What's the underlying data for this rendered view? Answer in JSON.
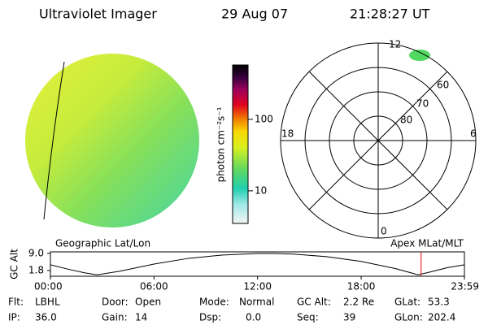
{
  "header": {
    "title": "Ultraviolet Imager",
    "date": "29 Aug 07",
    "time": "21:28:27 UT"
  },
  "colorbar": {
    "label": "photon cm⁻²s⁻¹",
    "log_scale": true,
    "clim": [
      3.5,
      575
    ],
    "ticks": [
      10,
      100
    ]
  },
  "polar": {
    "mlt_labels": [
      "12",
      "6",
      "0",
      "18"
    ],
    "mlat_labels": [
      "60",
      "70",
      "80"
    ]
  },
  "panels": {
    "left_label": "Geographic Lat/Lon",
    "right_label": "Apex MLat/MLT"
  },
  "orbit": {
    "y_label": "GC Alt",
    "ylim": [
      -0.6,
      9.6
    ],
    "yticks": [
      {
        "value": 9,
        "label": "9.0"
      },
      1.8
    ],
    "xlim": [
      0,
      23.98
    ],
    "xticks": [
      {
        "value": 0,
        "label": "00:00"
      },
      {
        "value": 6,
        "label": "06:00"
      },
      {
        "value": 12,
        "label": "12:00"
      },
      {
        "value": 18,
        "label": "18:00"
      },
      {
        "value": 23.98,
        "label": "23:59"
      }
    ],
    "x": [
      0,
      1,
      2,
      2.7,
      4,
      6,
      8,
      10,
      12,
      13,
      14,
      16,
      18,
      20,
      21.3,
      22,
      23,
      23.98
    ],
    "values": [
      4.2,
      2.4,
      0.8,
      0.0,
      1.5,
      4.5,
      6.9,
      8.3,
      8.9,
      8.9,
      8.7,
      7.6,
      5.6,
      2.6,
      0.0,
      1.2,
      3.0,
      4.2
    ],
    "current": 21.47,
    "current_color": "#e00000"
  },
  "footer": [
    [
      {
        "label": "Flt:",
        "value": "LBHL"
      },
      {
        "label": "Door:",
        "value": "Open"
      },
      {
        "label": "Mode:",
        "value": "Normal"
      },
      {
        "label": "GC Alt:",
        "value": "2.2 Re"
      },
      {
        "label": "GLat:",
        "value": "53.3"
      }
    ],
    [
      {
        "label": "IP:",
        "value": "36.0"
      },
      {
        "label": "Gain:",
        "value": "14"
      },
      {
        "label": "Dsp:",
        "value": "0.0"
      },
      {
        "label": "Seq:",
        "value": "39"
      },
      {
        "label": "GLon:",
        "value": "202.4"
      }
    ]
  ]
}
